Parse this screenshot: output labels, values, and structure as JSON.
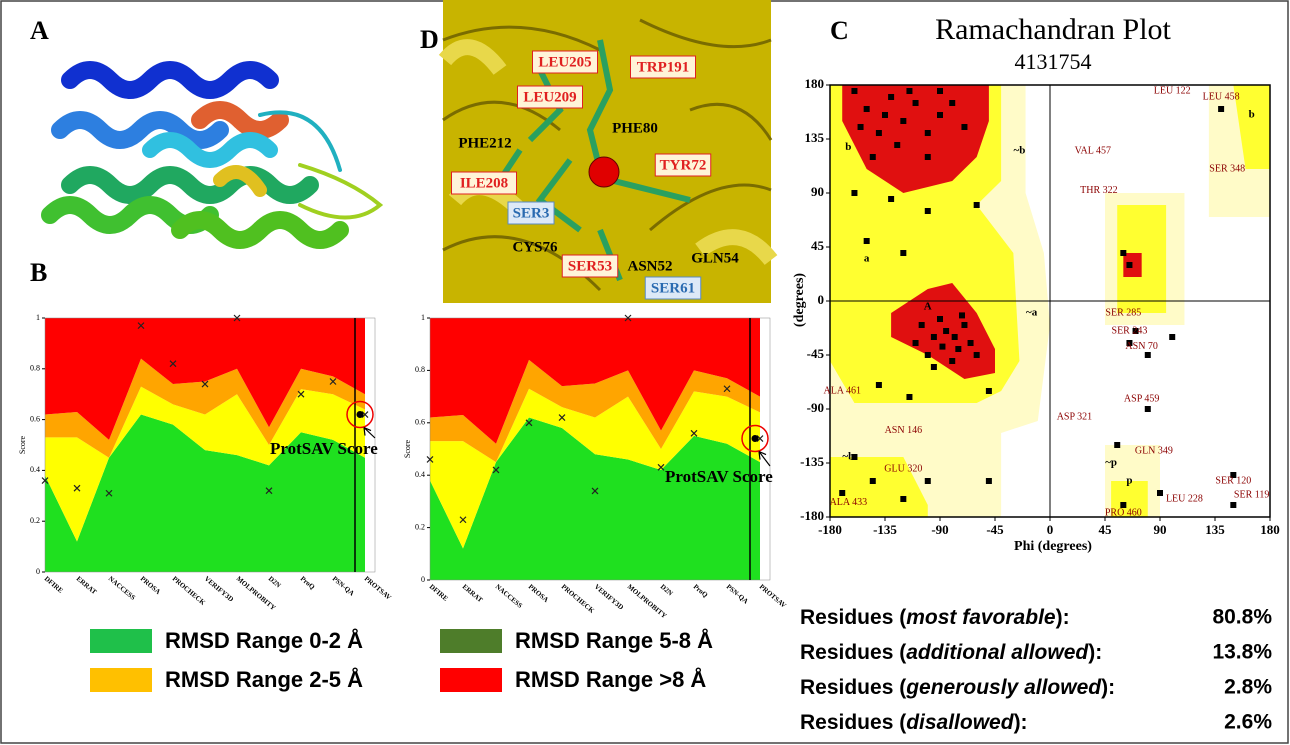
{
  "panel_labels": {
    "a": "A",
    "b": "B",
    "c": "C",
    "d": "D"
  },
  "structure_labels": [
    {
      "text": "LEU205",
      "style": "red"
    },
    {
      "text": "TRP191",
      "style": "red"
    },
    {
      "text": "LEU209",
      "style": "red"
    },
    {
      "text": "PHE80",
      "style": "plain"
    },
    {
      "text": "PHE212",
      "style": "plain"
    },
    {
      "text": "TYR72",
      "style": "red"
    },
    {
      "text": "ILE208",
      "style": "red"
    },
    {
      "text": "SER3",
      "style": "blue"
    },
    {
      "text": "CYS76",
      "style": "plain"
    },
    {
      "text": "SER53",
      "style": "red"
    },
    {
      "text": "ASN52",
      "style": "plain"
    },
    {
      "text": "GLN54",
      "style": "plain"
    },
    {
      "text": "SER61",
      "style": "blue"
    }
  ],
  "chart_data": [
    {
      "type": "area",
      "ylabel": "Score",
      "annotation": "ProtSAV Score",
      "categories": [
        "DFIRE",
        "ERRAT",
        "NACCESS",
        "PROSA",
        "PROCHECK",
        "VERIFY3D",
        "MOLPROBITY",
        "D2N",
        "ProQ",
        "PSN-QA",
        "PROTSAV"
      ],
      "ylim": [
        0,
        1
      ],
      "yticks": [
        0,
        0.2,
        0.4,
        0.6,
        0.8,
        1
      ],
      "series": [
        {
          "color": "#1fe01f",
          "values": [
            0.38,
            0.12,
            0.45,
            0.62,
            0.58,
            0.48,
            0.46,
            0.42,
            0.55,
            0.52,
            0.45
          ]
        },
        {
          "color": "#ffff00",
          "values": [
            0.15,
            0.41,
            0.0,
            0.11,
            0.08,
            0.14,
            0.24,
            0.08,
            0.17,
            0.18,
            0.19
          ]
        },
        {
          "color": "#ffa500",
          "values": [
            0.09,
            0.1,
            0.07,
            0.11,
            0.08,
            0.13,
            0.1,
            0.07,
            0.08,
            0.07,
            0.06
          ]
        },
        {
          "color": "#ff0000",
          "values": [
            0.38,
            0.37,
            0.48,
            0.16,
            0.26,
            0.25,
            0.2,
            0.43,
            0.2,
            0.23,
            0.3
          ]
        }
      ],
      "scores": {
        "color": "#222222",
        "values": [
          0.36,
          0.33,
          0.31,
          0.97,
          0.82,
          0.74,
          1.0,
          0.32,
          0.7,
          0.75,
          0.62
        ]
      }
    },
    {
      "type": "area",
      "ylabel": "Score",
      "annotation": "ProtSAV Score",
      "categories": [
        "DFIRE",
        "ERRAT",
        "NACCESS",
        "PROSA",
        "PROCHECK",
        "VERIFY3D",
        "MOLPROBITY",
        "D2N",
        "ProQ",
        "PSN-QA",
        "PROTSAV"
      ],
      "ylim": [
        0,
        1
      ],
      "yticks": [
        0,
        0.2,
        0.4,
        0.6,
        0.8,
        1
      ],
      "series": [
        {
          "color": "#1fe01f",
          "values": [
            0.38,
            0.12,
            0.45,
            0.62,
            0.58,
            0.48,
            0.46,
            0.42,
            0.55,
            0.52,
            0.45
          ]
        },
        {
          "color": "#ffff00",
          "values": [
            0.15,
            0.41,
            0.0,
            0.11,
            0.08,
            0.14,
            0.24,
            0.08,
            0.17,
            0.18,
            0.19
          ]
        },
        {
          "color": "#ffa500",
          "values": [
            0.09,
            0.1,
            0.07,
            0.11,
            0.08,
            0.13,
            0.1,
            0.07,
            0.08,
            0.07,
            0.06
          ]
        },
        {
          "color": "#ff0000",
          "values": [
            0.38,
            0.37,
            0.48,
            0.16,
            0.26,
            0.25,
            0.2,
            0.43,
            0.2,
            0.23,
            0.3
          ]
        }
      ],
      "scores": {
        "color": "#222222",
        "values": [
          0.46,
          0.23,
          0.42,
          0.6,
          0.62,
          0.34,
          1.0,
          0.43,
          0.56,
          0.73,
          0.54
        ]
      }
    },
    {
      "type": "scatter",
      "title": "Ramachandran Plot",
      "subtitle": "4131754",
      "xlabel": "Phi (degrees)",
      "ylabel": "(degrees)",
      "xlim": [
        -180,
        180
      ],
      "ylim": [
        -180,
        180
      ],
      "xticks": [
        -180,
        -135,
        -90,
        -45,
        0,
        45,
        90,
        135,
        180
      ],
      "yticks": [
        -180,
        -135,
        -90,
        -45,
        0,
        45,
        90,
        135,
        180
      ],
      "color": "#000000",
      "x": [
        -95,
        -85,
        -75,
        -100,
        -70,
        -80,
        -90,
        -65,
        -105,
        -60,
        -88,
        -78,
        -95,
        -72,
        -110,
        -150,
        -130,
        -120,
        -140,
        -110,
        -100,
        -90,
        -160,
        -125,
        -80,
        -145,
        -115,
        -70,
        -135,
        -100,
        -155,
        -90,
        -130,
        -100,
        -160,
        -60,
        -140,
        -115,
        -50,
        -170,
        -145,
        -120,
        -160,
        -100,
        -50,
        60,
        65,
        140,
        150,
        150,
        90,
        80,
        80,
        65,
        70,
        100,
        55,
        60,
        -150,
        -120
      ],
      "y": [
        -30,
        -25,
        -40,
        -45,
        -20,
        -50,
        -15,
        -35,
        -20,
        -45,
        -38,
        -30,
        -55,
        -12,
        -35,
        160,
        170,
        150,
        140,
        165,
        140,
        155,
        175,
        130,
        165,
        120,
        175,
        145,
        155,
        120,
        145,
        175,
        85,
        75,
        90,
        80,
        -70,
        -80,
        -75,
        -160,
        -150,
        -165,
        -130,
        -150,
        -150,
        40,
        30,
        160,
        -170,
        -145,
        -160,
        -90,
        -45,
        -35,
        -25,
        -30,
        -120,
        -170,
        50,
        40
      ],
      "annotations": [
        {
          "text": "LEU 122",
          "x": 100,
          "y": 175
        },
        {
          "text": "LEU 458",
          "x": 140,
          "y": 170
        },
        {
          "text": "VAL 457",
          "x": 35,
          "y": 125
        },
        {
          "text": "SER 348",
          "x": 145,
          "y": 110
        },
        {
          "text": "THR 322",
          "x": 40,
          "y": 92
        },
        {
          "text": "SER 285",
          "x": 60,
          "y": -10
        },
        {
          "text": "SER 243",
          "x": 65,
          "y": -25
        },
        {
          "text": "ASN 70",
          "x": 75,
          "y": -38
        },
        {
          "text": "ALA 461",
          "x": -170,
          "y": -75
        },
        {
          "text": "ASN 146",
          "x": -120,
          "y": -108
        },
        {
          "text": "ASP 459",
          "x": 75,
          "y": -82
        },
        {
          "text": "ASP 321",
          "x": 20,
          "y": -97
        },
        {
          "text": "GLU 320",
          "x": -120,
          "y": -140
        },
        {
          "text": "GLN 349",
          "x": 85,
          "y": -125
        },
        {
          "text": "ALA 433",
          "x": -165,
          "y": -168
        },
        {
          "text": "LEU 228",
          "x": 110,
          "y": -165
        },
        {
          "text": "SER 120",
          "x": 150,
          "y": -150
        },
        {
          "text": "SER 119",
          "x": 165,
          "y": -162
        },
        {
          "text": "PRO 460",
          "x": 60,
          "y": -177
        }
      ],
      "region_labels": [
        {
          "text": "b",
          "x": -165,
          "y": 128
        },
        {
          "text": "A",
          "x": -100,
          "y": -5
        },
        {
          "text": "a",
          "x": -150,
          "y": 35
        },
        {
          "text": "~a",
          "x": -15,
          "y": -10
        },
        {
          "text": "~b",
          "x": -25,
          "y": 125
        },
        {
          "text": "p",
          "x": 65,
          "y": -150
        },
        {
          "text": "~p",
          "x": 50,
          "y": -135
        },
        {
          "text": "b",
          "x": 165,
          "y": 155
        },
        {
          "text": "~b",
          "x": -165,
          "y": -130
        }
      ]
    }
  ],
  "legend": [
    {
      "name": "RMSD Range 0-2 Å",
      "color": "#1fc04a"
    },
    {
      "name": "RMSD Range 5-8 Å",
      "color": "#4e7d2a"
    },
    {
      "name": "RMSD Range 2-5 Å",
      "color": "#ffc000"
    },
    {
      "name": "RMSD Range >8 Å",
      "color": "#ff0000"
    }
  ],
  "stats": [
    {
      "pre": "Residues (",
      "em": "most favorable",
      "post": "):",
      "value": "80.8%"
    },
    {
      "pre": "Residues (",
      "em": "additional allowed",
      "post": "):",
      "value": "13.8%"
    },
    {
      "pre": "Residues (",
      "em": "generously allowed",
      "post": "):",
      "value": "2.8%"
    },
    {
      "pre": "Residues (",
      "em": "disallowed",
      "post": "):",
      "value": "2.6%"
    }
  ]
}
